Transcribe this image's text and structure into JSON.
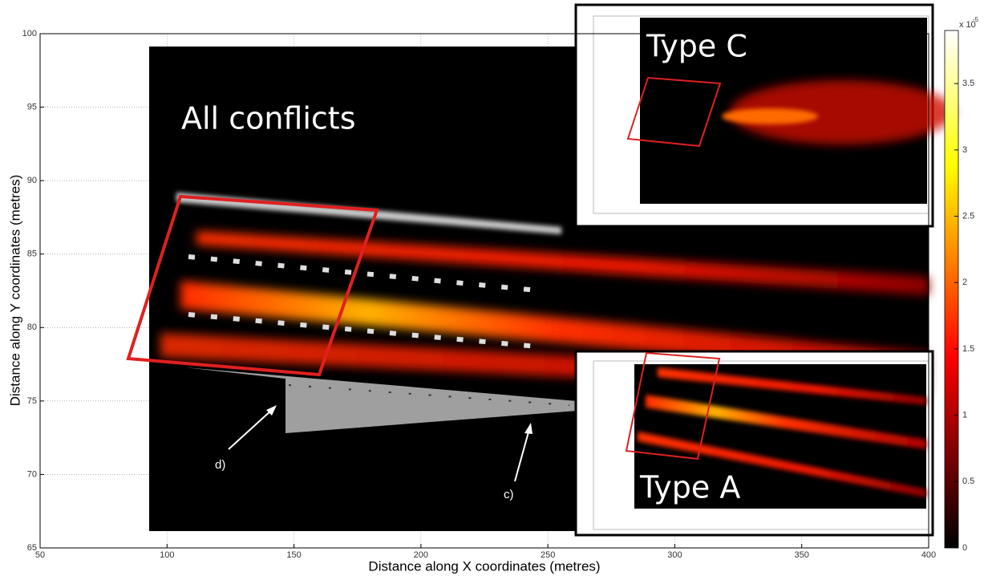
{
  "chart_data": {
    "type": "heatmap",
    "xlabel": "Distance along X coordinates (metres)",
    "ylabel": "Distance along Y coordinates (metres)",
    "xlim": [
      50,
      400
    ],
    "xticks": [
      50,
      100,
      150,
      200,
      250,
      300,
      350,
      400
    ],
    "ylim": [
      65,
      100
    ],
    "yticks": [
      65,
      70,
      75,
      80,
      85,
      90,
      95,
      100
    ],
    "grid": true,
    "annotations": [
      "All conflicts",
      "d)",
      "c)"
    ],
    "insets": [
      {
        "title": "Type C"
      },
      {
        "title": "Type A"
      }
    ],
    "colorbar": {
      "lim": [
        0,
        3.9
      ],
      "ticks": [
        0,
        0.5,
        1,
        1.5,
        2,
        2.5,
        3,
        3.5
      ],
      "multiplier": "x 10",
      "exponent": "-5"
    }
  }
}
